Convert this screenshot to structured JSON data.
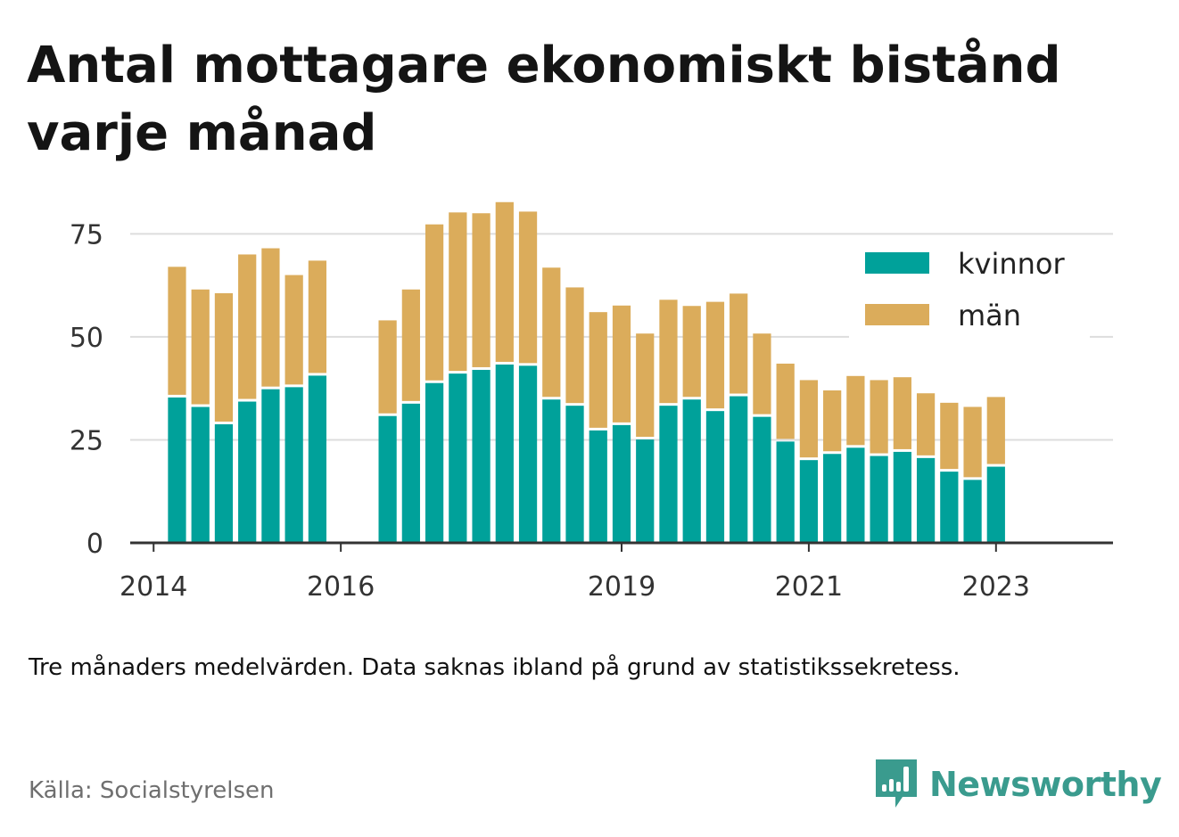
{
  "title": "Antal mottagare ekonomiskt bistånd varje månad",
  "note": "Tre månaders medelvärden. Data saknas ibland på grund av statistikssekretess.",
  "source": "Källa: Socialstyrelsen",
  "brand": {
    "name": "Newsworthy",
    "icon": "newsworthy-logo-icon",
    "color": "#3a9b8e"
  },
  "chart_data": {
    "type": "bar",
    "stacked": true,
    "x": [
      "2014-04",
      "2014-07",
      "2014-10",
      "2015-01",
      "2015-04",
      "2015-07",
      "2015-10",
      "2016-07",
      "2016-10",
      "2017-01",
      "2017-04",
      "2017-07",
      "2017-10",
      "2018-01",
      "2018-04",
      "2018-07",
      "2018-10",
      "2019-01",
      "2019-04",
      "2019-07",
      "2019-10",
      "2020-01",
      "2020-04",
      "2020-07",
      "2020-10",
      "2021-01",
      "2021-04",
      "2021-07",
      "2021-10",
      "2022-01",
      "2022-04",
      "2022-07",
      "2022-10",
      "2023-01"
    ],
    "series": [
      {
        "name": "kvinnor",
        "color": "#00a19a",
        "values": [
          35.5,
          33.2,
          29,
          34.5,
          37.5,
          38,
          40.8,
          31,
          34,
          39,
          41.3,
          42.2,
          43.5,
          43.2,
          35,
          33.5,
          27.5,
          28.8,
          25.3,
          33.5,
          35,
          32.2,
          35.8,
          30.8,
          24.8,
          20.3,
          21.8,
          23.3,
          21.3,
          22.3,
          20.8,
          17.5,
          15.5,
          18.7
        ]
      },
      {
        "name": "män",
        "color": "#dbac5b",
        "values": [
          31.5,
          28.3,
          31.6,
          35.5,
          34,
          27,
          27.7,
          23,
          27.5,
          38.3,
          38.9,
          37.8,
          39.2,
          37.2,
          31.8,
          28.5,
          28.5,
          28.8,
          25.5,
          25.5,
          22.5,
          26.3,
          24.7,
          20,
          18.7,
          19.2,
          15.2,
          17.2,
          18.2,
          17.9,
          15.5,
          16.5,
          17.5,
          16.7
        ]
      }
    ],
    "xlim": [
      "2013-10",
      "2024-04"
    ],
    "xticks": [
      "2014",
      "2016",
      "2019",
      "2021",
      "2023"
    ],
    "ylim": [
      0,
      82
    ],
    "yticks": [
      0,
      25,
      50,
      75
    ],
    "grid": true,
    "legend": "top-right"
  }
}
